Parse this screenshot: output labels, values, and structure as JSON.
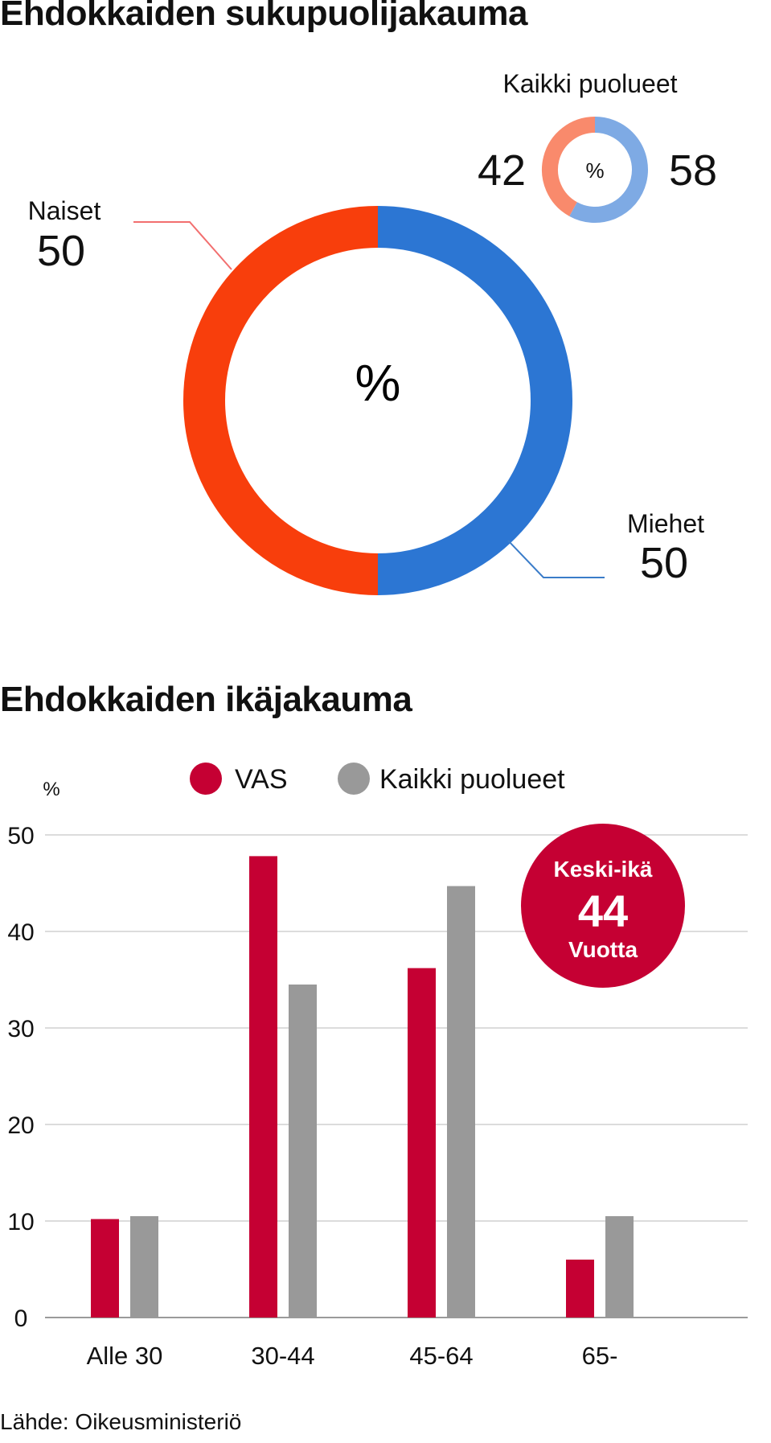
{
  "gender_title": "Ehdokkaiden sukupuolijakauma",
  "age_title": "Ehdokkaiden ikäjakauma",
  "source": "Lähde: Oikeusministeriö",
  "colors": {
    "naiset": "#f83e0c",
    "miehet": "#2c76d3",
    "all_naiset": "#f98a6c",
    "all_miehet": "#7eaae4",
    "vas": "#c50033",
    "all": "#999999",
    "grid": "#d0d0d0",
    "callout_naiset": "#f26f6f",
    "callout_miehet": "#3a7cc9"
  },
  "chart_data": [
    {
      "type": "pie",
      "style": "donut",
      "center_label": "%",
      "slices": [
        {
          "name": "Naiset",
          "value": 50
        },
        {
          "name": "Miehet",
          "value": 50
        }
      ]
    },
    {
      "type": "pie",
      "style": "donut",
      "title": "Kaikki puolueet",
      "center_label": "%",
      "slices": [
        {
          "name": "Naiset",
          "value": 42
        },
        {
          "name": "Miehet",
          "value": 58
        }
      ]
    },
    {
      "type": "bar",
      "ylabel": "%",
      "ylim": [
        0,
        50
      ],
      "yticks": [
        0,
        10,
        20,
        30,
        40,
        50
      ],
      "grid": true,
      "legend_position": "top",
      "categories": [
        "Alle 30",
        "30-44",
        "45-64",
        "65-"
      ],
      "series": [
        {
          "name": "VAS",
          "values": [
            10.2,
            47.8,
            36.2,
            6.0
          ]
        },
        {
          "name": "Kaikki puolueet",
          "values": [
            10.5,
            34.5,
            44.7,
            10.5
          ]
        }
      ],
      "annotation": {
        "line1": "Keski-ikä",
        "value": "44",
        "line2": "Vuotta"
      }
    }
  ]
}
